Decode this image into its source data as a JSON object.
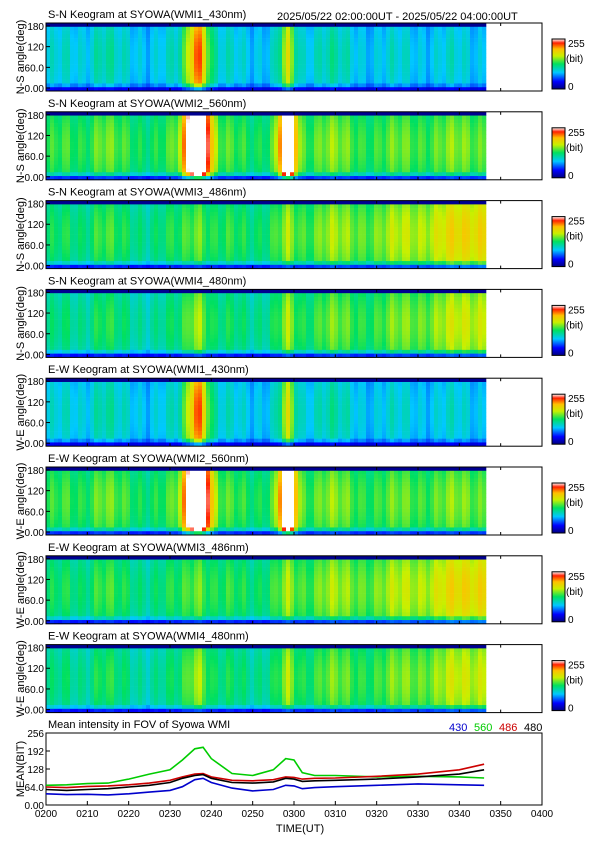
{
  "header": {
    "time_range": "2025/05/22 02:00:00UT - 2025/05/22 04:00:00UT"
  },
  "colorbar": {
    "max_label": "255",
    "unit_label": "(bit)",
    "min_label": "0"
  },
  "keograms": [
    {
      "title": "S-N Keogram at SYOWA(WMI1_430nm)",
      "ylabel": "N-S angle(deg)",
      "ticks": [
        "180",
        "120",
        "60.0",
        "0.00"
      ],
      "base": 0.36,
      "arcs": [
        0.55,
        0.3
      ],
      "warm": 0,
      "band": "430"
    },
    {
      "title": "S-N Keogram at SYOWA(WMI2_560nm)",
      "ylabel": "N-S angle(deg)",
      "ticks": [
        "180",
        "120",
        "60.0",
        "0.00"
      ],
      "base": 0.52,
      "arcs": [
        0.98,
        0.85
      ],
      "warm": 0.08,
      "band": "560"
    },
    {
      "title": "S-N Keogram at SYOWA(WMI3_486nm)",
      "ylabel": "N-S angle(deg)",
      "ticks": [
        "180",
        "120",
        "60.0",
        "0.00"
      ],
      "base": 0.48,
      "arcs": [
        0.12,
        0.08
      ],
      "warm": 0.3,
      "band": "486"
    },
    {
      "title": "S-N Keogram at SYOWA(WMI4_480nm)",
      "ylabel": "N-S angle(deg)",
      "ticks": [
        "180",
        "120",
        "60.0",
        "0.00"
      ],
      "base": 0.45,
      "arcs": [
        0.2,
        0.12
      ],
      "warm": 0.25,
      "band": "480"
    },
    {
      "title": "E-W Keogram at SYOWA(WMI1_430nm)",
      "ylabel": "W-E angle(deg)",
      "ticks": [
        "180",
        "120",
        "60.0",
        "0.00"
      ],
      "base": 0.36,
      "arcs": [
        0.55,
        0.3
      ],
      "warm": 0,
      "band": "430"
    },
    {
      "title": "E-W Keogram at SYOWA(WMI2_560nm)",
      "ylabel": "W-E angle(deg)",
      "ticks": [
        "180",
        "120",
        "60.0",
        "0.00"
      ],
      "base": 0.52,
      "arcs": [
        0.98,
        0.85
      ],
      "warm": 0.08,
      "band": "560"
    },
    {
      "title": "E-W Keogram at SYOWA(WMI3_486nm)",
      "ylabel": "W-E angle(deg)",
      "ticks": [
        "180",
        "120",
        "60.0",
        "0.00"
      ],
      "base": 0.48,
      "arcs": [
        0.12,
        0.08
      ],
      "warm": 0.3,
      "band": "486"
    },
    {
      "title": "E-W Keogram at SYOWA(WMI4_480nm)",
      "ylabel": "W-E angle(deg)",
      "ticks": [
        "180",
        "120",
        "60.0",
        "0.00"
      ],
      "base": 0.45,
      "arcs": [
        0.2,
        0.12
      ],
      "warm": 0.25,
      "band": "480"
    }
  ],
  "keogram_axis": {
    "ylim": [
      0,
      180
    ],
    "xlim": [
      "0200",
      "0346"
    ]
  },
  "chart_data": {
    "type": "line",
    "title": "Mean intensity in FOV of Syowa WMI",
    "xlabel": "TIME(UT)",
    "ylabel": "MEAN(BIT)",
    "ylim": [
      0,
      256
    ],
    "y_ticks": [
      "256",
      "192",
      "128",
      "64.0",
      "0.00"
    ],
    "x_ticks": [
      "0200",
      "0210",
      "0220",
      "0230",
      "0240",
      "0250",
      "0300",
      "0310",
      "0320",
      "0330",
      "0340",
      "0350",
      "0400"
    ],
    "xlim_minutes_after_0200": [
      0,
      120
    ],
    "legend_position": "top-right",
    "series": [
      {
        "name": "430",
        "color": "#0000cc",
        "x": [
          0,
          5,
          10,
          15,
          20,
          25,
          30,
          33,
          36,
          38,
          40,
          45,
          50,
          55,
          58,
          60,
          62,
          65,
          70,
          80,
          90,
          100,
          106
        ],
        "y": [
          40,
          37,
          38,
          36,
          40,
          46,
          52,
          65,
          90,
          95,
          80,
          60,
          50,
          55,
          70,
          68,
          58,
          62,
          65,
          70,
          75,
          72,
          70
        ]
      },
      {
        "name": "560",
        "color": "#00cc00",
        "x": [
          0,
          5,
          10,
          15,
          20,
          25,
          30,
          33,
          36,
          38,
          40,
          45,
          50,
          55,
          58,
          60,
          62,
          65,
          70,
          80,
          90,
          100,
          106
        ],
        "y": [
          70,
          72,
          76,
          78,
          92,
          110,
          125,
          160,
          200,
          205,
          165,
          112,
          105,
          125,
          165,
          160,
          115,
          105,
          105,
          100,
          102,
          100,
          96
        ]
      },
      {
        "name": "486",
        "color": "#cc0000",
        "x": [
          0,
          5,
          10,
          15,
          20,
          25,
          30,
          33,
          36,
          38,
          40,
          45,
          50,
          55,
          58,
          60,
          62,
          65,
          70,
          80,
          90,
          100,
          106
        ],
        "y": [
          64,
          62,
          66,
          68,
          72,
          78,
          88,
          100,
          110,
          112,
          100,
          88,
          86,
          90,
          100,
          98,
          92,
          95,
          96,
          102,
          110,
          125,
          145
        ]
      },
      {
        "name": "480",
        "color": "#000000",
        "x": [
          0,
          5,
          10,
          15,
          20,
          25,
          30,
          33,
          36,
          38,
          40,
          45,
          50,
          55,
          58,
          60,
          62,
          65,
          70,
          80,
          90,
          100,
          106
        ],
        "y": [
          55,
          52,
          55,
          58,
          64,
          70,
          80,
          95,
          105,
          108,
          95,
          80,
          78,
          82,
          95,
          92,
          84,
          86,
          88,
          92,
          100,
          110,
          125
        ]
      }
    ]
  }
}
